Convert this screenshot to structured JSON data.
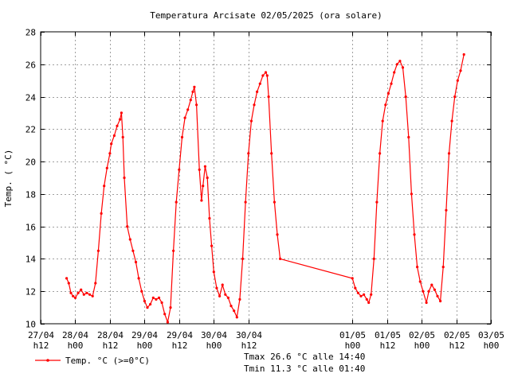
{
  "chart_data": {
    "type": "line",
    "title": "Temperatura Arcisate 02/05/2025 (ora solare)",
    "ylabel": "Temp. ( °C)",
    "xlabel": "",
    "ylim": [
      10,
      28
    ],
    "yticks": [
      10,
      12,
      14,
      16,
      18,
      20,
      22,
      24,
      26,
      28
    ],
    "xlim": [
      "27/04 12:00",
      "03/05 00:00"
    ],
    "grid": true,
    "xticks": [
      {
        "t": "27/04 12:00",
        "line1": "27/04",
        "line2": "h12"
      },
      {
        "t": "28/04 00:00",
        "line1": "28/04",
        "line2": "h00"
      },
      {
        "t": "28/04 12:00",
        "line1": "28/04",
        "line2": "h12"
      },
      {
        "t": "29/04 00:00",
        "line1": "29/04",
        "line2": "h00"
      },
      {
        "t": "29/04 12:00",
        "line1": "29/04",
        "line2": "h12"
      },
      {
        "t": "30/04 00:00",
        "line1": "30/04",
        "line2": "h00"
      },
      {
        "t": "30/04 12:00",
        "line1": "30/04",
        "line2": "h12"
      },
      {
        "t": "01/05 00:00",
        "line1": "01/05",
        "line2": "h00"
      },
      {
        "t": "01/05 12:00",
        "line1": "01/05",
        "line2": "h12"
      },
      {
        "t": "02/05 00:00",
        "line1": "02/05",
        "line2": "h00"
      },
      {
        "t": "02/05 12:00",
        "line1": "02/05",
        "line2": "h12"
      },
      {
        "t": "03/05 00:00",
        "line1": "03/05",
        "line2": "h00"
      }
    ],
    "series": [
      {
        "name": "Temp. °C (>=0°C)",
        "color": "#ff0000",
        "points": [
          [
            "27/04 21:00",
            12.8
          ],
          [
            "27/04 21:45",
            12.5
          ],
          [
            "27/04 22:30",
            11.9
          ],
          [
            "27/04 23:15",
            11.7
          ],
          [
            "28/04 00:00",
            11.6
          ],
          [
            "28/04 01:00",
            11.9
          ],
          [
            "28/04 02:00",
            12.1
          ],
          [
            "28/04 03:00",
            11.8
          ],
          [
            "28/04 04:00",
            11.9
          ],
          [
            "28/04 05:00",
            11.8
          ],
          [
            "28/04 06:00",
            11.7
          ],
          [
            "28/04 07:00",
            12.5
          ],
          [
            "28/04 08:00",
            14.5
          ],
          [
            "28/04 09:00",
            16.8
          ],
          [
            "28/04 10:00",
            18.5
          ],
          [
            "28/04 11:00",
            19.6
          ],
          [
            "28/04 12:00",
            20.5
          ],
          [
            "28/04 12:30",
            21.1
          ],
          [
            "28/04 13:30",
            21.6
          ],
          [
            "28/04 14:30",
            22.2
          ],
          [
            "28/04 15:30",
            22.6
          ],
          [
            "28/04 16:00",
            23.0
          ],
          [
            "28/04 16:30",
            21.5
          ],
          [
            "28/04 17:00",
            19.0
          ],
          [
            "28/04 18:00",
            16.0
          ],
          [
            "28/04 19:00",
            15.2
          ],
          [
            "28/04 20:00",
            14.5
          ],
          [
            "28/04 21:00",
            13.8
          ],
          [
            "28/04 22:00",
            12.8
          ],
          [
            "28/04 23:00",
            12.0
          ],
          [
            "29/04 00:00",
            11.4
          ],
          [
            "29/04 01:00",
            11.0
          ],
          [
            "29/04 02:00",
            11.2
          ],
          [
            "29/04 03:00",
            11.6
          ],
          [
            "29/04 04:00",
            11.5
          ],
          [
            "29/04 05:00",
            11.6
          ],
          [
            "29/04 06:00",
            11.3
          ],
          [
            "29/04 07:00",
            10.6
          ],
          [
            "29/04 08:00",
            10.1
          ],
          [
            "29/04 09:00",
            11.0
          ],
          [
            "29/04 10:00",
            14.5
          ],
          [
            "29/04 11:00",
            17.5
          ],
          [
            "29/04 12:00",
            19.5
          ],
          [
            "29/04 13:00",
            21.5
          ],
          [
            "29/04 14:00",
            22.7
          ],
          [
            "29/04 15:00",
            23.2
          ],
          [
            "29/04 16:00",
            23.8
          ],
          [
            "29/04 16:45",
            24.3
          ],
          [
            "29/04 17:15",
            24.6
          ],
          [
            "29/04 18:00",
            23.5
          ],
          [
            "29/04 19:00",
            19.5
          ],
          [
            "29/04 19:45",
            17.6
          ],
          [
            "29/04 20:15",
            18.5
          ],
          [
            "29/04 21:00",
            19.7
          ],
          [
            "29/04 21:45",
            19.0
          ],
          [
            "29/04 22:30",
            16.5
          ],
          [
            "29/04 23:15",
            14.8
          ],
          [
            "30/04 00:00",
            13.2
          ],
          [
            "30/04 01:00",
            12.2
          ],
          [
            "30/04 02:00",
            11.7
          ],
          [
            "30/04 03:00",
            12.4
          ],
          [
            "30/04 04:00",
            11.8
          ],
          [
            "30/04 05:00",
            11.6
          ],
          [
            "30/04 06:00",
            11.1
          ],
          [
            "30/04 07:00",
            10.8
          ],
          [
            "30/04 08:00",
            10.4
          ],
          [
            "30/04 09:00",
            11.5
          ],
          [
            "30/04 10:00",
            14.0
          ],
          [
            "30/04 11:00",
            17.5
          ],
          [
            "30/04 12:00",
            20.5
          ],
          [
            "30/04 13:00",
            22.5
          ],
          [
            "30/04 14:00",
            23.5
          ],
          [
            "30/04 15:00",
            24.3
          ],
          [
            "30/04 16:00",
            24.8
          ],
          [
            "30/04 17:00",
            25.3
          ],
          [
            "30/04 18:00",
            25.5
          ],
          [
            "30/04 18:30",
            25.3
          ],
          [
            "30/04 19:00",
            24.0
          ],
          [
            "30/04 20:00",
            20.5
          ],
          [
            "30/04 21:00",
            17.5
          ],
          [
            "30/04 22:00",
            15.5
          ],
          [
            "30/04 23:00",
            14.0
          ],
          [
            "01/05 00:00",
            12.8
          ],
          [
            "01/05 01:00",
            12.2
          ],
          [
            "01/05 02:00",
            11.9
          ],
          [
            "01/05 03:00",
            11.7
          ],
          [
            "01/05 04:00",
            11.8
          ],
          [
            "01/05 05:00",
            11.5
          ],
          [
            "01/05 05:40",
            11.3
          ],
          [
            "01/05 06:30",
            11.8
          ],
          [
            "01/05 07:30",
            14.0
          ],
          [
            "01/05 08:30",
            17.5
          ],
          [
            "01/05 09:30",
            20.5
          ],
          [
            "01/05 10:30",
            22.5
          ],
          [
            "01/05 11:30",
            23.5
          ],
          [
            "01/05 12:30",
            24.2
          ],
          [
            "01/05 13:30",
            24.8
          ],
          [
            "01/05 14:30",
            25.5
          ],
          [
            "01/05 15:30",
            26.0
          ],
          [
            "01/05 16:30",
            26.2
          ],
          [
            "01/05 17:30",
            25.8
          ],
          [
            "01/05 18:30",
            24.0
          ],
          [
            "01/05 19:30",
            21.5
          ],
          [
            "01/05 20:30",
            18.0
          ],
          [
            "01/05 21:30",
            15.5
          ],
          [
            "01/05 22:30",
            13.5
          ],
          [
            "01/05 23:30",
            12.6
          ],
          [
            "02/05 00:30",
            12.0
          ],
          [
            "02/05 01:40",
            11.3
          ],
          [
            "02/05 02:30",
            12.0
          ],
          [
            "02/05 03:30",
            12.4
          ],
          [
            "02/05 04:30",
            12.1
          ],
          [
            "02/05 05:30",
            11.7
          ],
          [
            "02/05 06:30",
            11.4
          ],
          [
            "02/05 07:30",
            13.5
          ],
          [
            "02/05 08:30",
            17.0
          ],
          [
            "02/05 09:30",
            20.5
          ],
          [
            "02/05 10:30",
            22.5
          ],
          [
            "02/05 11:30",
            24.0
          ],
          [
            "02/05 12:30",
            25.0
          ],
          [
            "02/05 13:30",
            25.6
          ],
          [
            "02/05 14:40",
            26.6
          ]
        ]
      }
    ],
    "annotations": [
      "Tmax 26.6 °C alle 14:40",
      "Tmin 11.3 °C alle 01:40"
    ],
    "legend_position": "bottom-left"
  }
}
